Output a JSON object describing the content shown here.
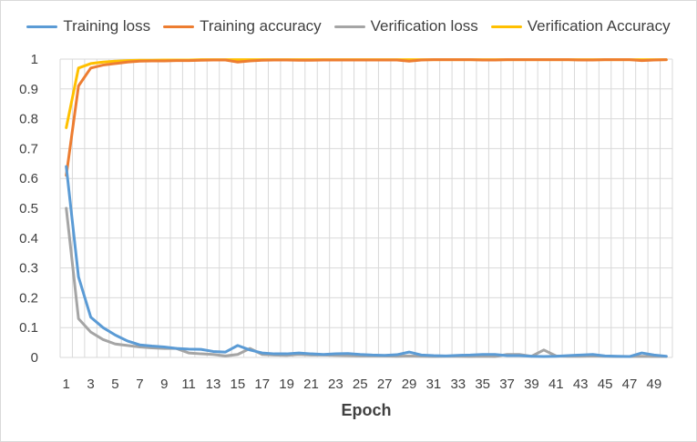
{
  "chart_data": {
    "type": "line",
    "title": "",
    "xlabel": "Epoch",
    "ylabel": "",
    "ylim": [
      0,
      1
    ],
    "yticks": [
      "0",
      "0.1",
      "0.2",
      "0.3",
      "0.4",
      "0.5",
      "0.6",
      "0.7",
      "0.8",
      "0.9",
      "1"
    ],
    "xticks": [
      "1",
      "3",
      "5",
      "7",
      "9",
      "11",
      "13",
      "15",
      "17",
      "19",
      "21",
      "23",
      "25",
      "27",
      "29",
      "31",
      "33",
      "35",
      "37",
      "39",
      "41",
      "43",
      "45",
      "47",
      "49"
    ],
    "grid": true,
    "legend_position": "top",
    "x": [
      1,
      2,
      3,
      4,
      5,
      6,
      7,
      8,
      9,
      10,
      11,
      12,
      13,
      14,
      15,
      16,
      17,
      18,
      19,
      20,
      21,
      22,
      23,
      24,
      25,
      26,
      27,
      28,
      29,
      30,
      31,
      32,
      33,
      34,
      35,
      36,
      37,
      38,
      39,
      40,
      41,
      42,
      43,
      44,
      45,
      46,
      47,
      48,
      49,
      50
    ],
    "series": [
      {
        "name": "Training loss",
        "color": "#5b9bd5",
        "values": [
          0.64,
          0.27,
          0.135,
          0.1,
          0.075,
          0.055,
          0.042,
          0.038,
          0.035,
          0.03,
          0.028,
          0.027,
          0.02,
          0.018,
          0.04,
          0.025,
          0.015,
          0.012,
          0.012,
          0.015,
          0.012,
          0.01,
          0.012,
          0.013,
          0.01,
          0.008,
          0.007,
          0.009,
          0.018,
          0.008,
          0.006,
          0.005,
          0.007,
          0.008,
          0.01,
          0.01,
          0.006,
          0.006,
          0.004,
          0.003,
          0.004,
          0.006,
          0.008,
          0.01,
          0.005,
          0.004,
          0.003,
          0.015,
          0.008,
          0.004
        ]
      },
      {
        "name": "Training accuracy",
        "color": "#ed7d31",
        "values": [
          0.61,
          0.91,
          0.97,
          0.98,
          0.985,
          0.99,
          0.993,
          0.994,
          0.994,
          0.995,
          0.995,
          0.996,
          0.997,
          0.997,
          0.99,
          0.994,
          0.996,
          0.997,
          0.997,
          0.996,
          0.996,
          0.997,
          0.997,
          0.997,
          0.997,
          0.997,
          0.997,
          0.997,
          0.993,
          0.997,
          0.998,
          0.998,
          0.998,
          0.998,
          0.997,
          0.997,
          0.998,
          0.998,
          0.998,
          0.998,
          0.998,
          0.998,
          0.997,
          0.997,
          0.998,
          0.998,
          0.998,
          0.995,
          0.997,
          0.998
        ]
      },
      {
        "name": "Verification loss",
        "color": "#a5a5a5",
        "values": [
          0.5,
          0.13,
          0.085,
          0.06,
          0.045,
          0.04,
          0.035,
          0.032,
          0.03,
          0.03,
          0.015,
          0.012,
          0.01,
          0.005,
          0.01,
          0.03,
          0.01,
          0.008,
          0.007,
          0.01,
          0.008,
          0.008,
          0.007,
          0.006,
          0.005,
          0.005,
          0.005,
          0.004,
          0.005,
          0.004,
          0.003,
          0.004,
          0.004,
          0.003,
          0.004,
          0.003,
          0.01,
          0.01,
          0.004,
          0.025,
          0.005,
          0.004,
          0.004,
          0.005,
          0.004,
          0.003,
          0.003,
          0.004,
          0.003,
          0.003
        ]
      },
      {
        "name": "Verification Accuracy",
        "color": "#ffc000",
        "values": [
          0.77,
          0.97,
          0.985,
          0.99,
          0.993,
          0.995,
          0.996,
          0.996,
          0.997,
          0.997,
          0.997,
          0.998,
          0.998,
          0.998,
          0.998,
          0.998,
          0.998,
          0.998,
          0.998,
          0.998,
          0.998,
          0.998,
          0.998,
          0.998,
          0.998,
          0.998,
          0.998,
          0.998,
          0.998,
          0.998,
          0.998,
          0.998,
          0.998,
          0.998,
          0.998,
          0.998,
          0.998,
          0.998,
          0.998,
          0.998,
          0.998,
          0.998,
          0.998,
          0.998,
          0.998,
          0.998,
          0.998,
          0.998,
          0.998,
          0.998
        ]
      }
    ]
  }
}
